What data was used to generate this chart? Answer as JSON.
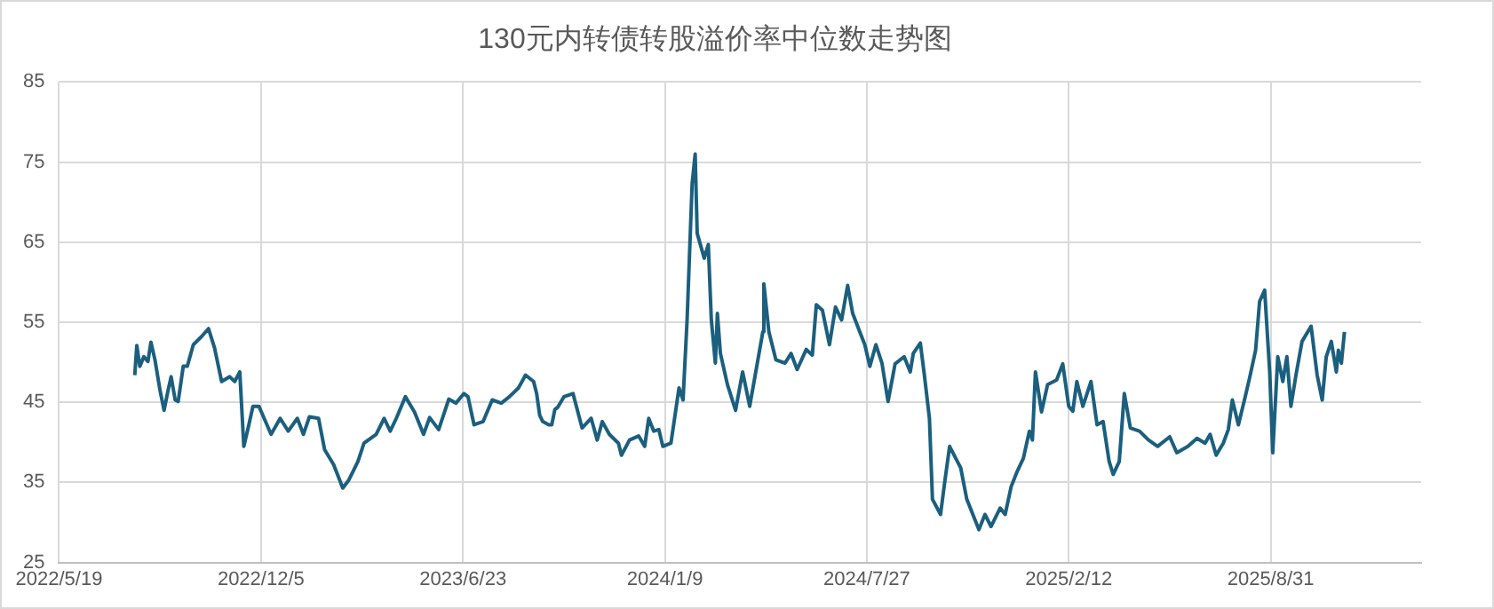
{
  "chart_data": {
    "type": "line",
    "title": "130元内转债转股溢价率中位数走势图",
    "series": [
      {
        "color": "#1b5f7e",
        "x": [
          "2022-08-02",
          "2022-08-04",
          "2022-08-07",
          "2022-08-11",
          "2022-08-15",
          "2022-08-18",
          "2022-08-22",
          "2022-08-27",
          "2022-08-31",
          "2022-09-04",
          "2022-09-07",
          "2022-09-11",
          "2022-09-14",
          "2022-09-19",
          "2022-09-23",
          "2022-09-29",
          "2022-10-07",
          "2022-10-14",
          "2022-10-20",
          "2022-10-27",
          "2022-11-04",
          "2022-11-09",
          "2022-11-14",
          "2022-11-18",
          "2022-11-23",
          "2022-11-27",
          "2022-12-03",
          "2022-12-15",
          "2022-12-24",
          "2023-01-01",
          "2023-01-10",
          "2023-01-16",
          "2023-01-22",
          "2023-01-31",
          "2023-02-06",
          "2023-02-15",
          "2023-02-24",
          "2023-03-02",
          "2023-03-11",
          "2023-03-17",
          "2023-03-29",
          "2023-04-06",
          "2023-04-12",
          "2023-04-18",
          "2023-04-27",
          "2023-05-06",
          "2023-05-15",
          "2023-05-21",
          "2023-05-30",
          "2023-06-09",
          "2023-06-16",
          "2023-06-24",
          "2023-06-28",
          "2023-07-04",
          "2023-07-13",
          "2023-07-22",
          "2023-07-31",
          "2023-08-08",
          "2023-08-17",
          "2023-08-24",
          "2023-09-01",
          "2023-09-04",
          "2023-09-07",
          "2023-09-10",
          "2023-09-16",
          "2023-09-19",
          "2023-09-22",
          "2023-09-25",
          "2023-10-01",
          "2023-10-10",
          "2023-10-19",
          "2023-10-28",
          "2023-11-03",
          "2023-11-08",
          "2023-11-15",
          "2023-11-24",
          "2023-11-27",
          "2023-12-05",
          "2023-12-14",
          "2023-12-20",
          "2023-12-24",
          "2023-12-29",
          "2024-01-03",
          "2024-01-07",
          "2024-01-15",
          "2024-01-23",
          "2024-01-27",
          "2024-01-31",
          "2024-02-05",
          "2024-02-08",
          "2024-02-10",
          "2024-02-17",
          "2024-02-21",
          "2024-02-24",
          "2024-02-28",
          "2024-03-01",
          "2024-03-04",
          "2024-03-11",
          "2024-03-19",
          "2024-03-26",
          "2024-04-02",
          "2024-04-09",
          "2024-04-15",
          "2024-04-16",
          "2024-04-21",
          "2024-04-28",
          "2024-05-07",
          "2024-05-13",
          "2024-05-19",
          "2024-05-28",
          "2024-06-03",
          "2024-06-07",
          "2024-06-13",
          "2024-06-20",
          "2024-06-26",
          "2024-07-02",
          "2024-07-08",
          "2024-07-13",
          "2024-07-20",
          "2024-07-25",
          "2024-07-30",
          "2024-08-05",
          "2024-08-11",
          "2024-08-17",
          "2024-08-24",
          "2024-09-02",
          "2024-09-08",
          "2024-09-11",
          "2024-09-18",
          "2024-09-22",
          "2024-09-27",
          "2024-09-30",
          "2024-10-08",
          "2024-10-12",
          "2024-10-17",
          "2024-10-28",
          "2024-11-03",
          "2024-11-09",
          "2024-11-15",
          "2024-11-21",
          "2024-11-27",
          "2024-12-06",
          "2024-12-11",
          "2024-12-17",
          "2024-12-23",
          "2024-12-29",
          "2025-01-04",
          "2025-01-07",
          "2025-01-10",
          "2025-01-16",
          "2025-01-22",
          "2025-01-31",
          "2025-02-06",
          "2025-02-12",
          "2025-02-16",
          "2025-02-20",
          "2025-02-26",
          "2025-03-06",
          "2025-03-12",
          "2025-03-18",
          "2025-03-24",
          "2025-03-28",
          "2025-04-03",
          "2025-04-08",
          "2025-04-14",
          "2025-04-23",
          "2025-05-02",
          "2025-05-11",
          "2025-05-23",
          "2025-05-30",
          "2025-06-10",
          "2025-06-19",
          "2025-06-27",
          "2025-07-02",
          "2025-07-08",
          "2025-07-15",
          "2025-07-20",
          "2025-07-24",
          "2025-07-30",
          "2025-08-05",
          "2025-08-10",
          "2025-08-16",
          "2025-08-20",
          "2025-08-25",
          "2025-08-30",
          "2025-09-02",
          "2025-09-07",
          "2025-09-12",
          "2025-09-16",
          "2025-09-20",
          "2025-09-25",
          "2025-10-01",
          "2025-10-10",
          "2025-10-16",
          "2025-10-21",
          "2025-10-25",
          "2025-10-30",
          "2025-11-04",
          "2025-11-06",
          "2025-11-09",
          "2025-11-12"
        ],
        "values": [
          48.4,
          52.1,
          49.5,
          50.7,
          50.1,
          52.5,
          50.3,
          46.5,
          44.0,
          46.5,
          48.2,
          45.3,
          45.1,
          49.5,
          49.5,
          52.2,
          53.2,
          54.2,
          51.8,
          47.6,
          48.2,
          47.6,
          48.8,
          39.5,
          42.2,
          44.5,
          44.5,
          41.0,
          43.0,
          41.4,
          43.0,
          41.0,
          43.2,
          43.0,
          39.1,
          37.2,
          34.3,
          35.3,
          37.6,
          39.9,
          41.0,
          43.0,
          41.4,
          43.0,
          45.7,
          43.8,
          41.0,
          43.1,
          41.6,
          45.4,
          44.9,
          46.1,
          45.7,
          42.2,
          42.6,
          45.3,
          44.9,
          45.7,
          46.8,
          48.4,
          47.6,
          46.1,
          43.4,
          42.6,
          42.2,
          42.2,
          44.1,
          44.4,
          45.7,
          46.1,
          41.8,
          43.0,
          40.3,
          42.6,
          41.0,
          39.9,
          38.4,
          40.3,
          40.8,
          39.5,
          43.0,
          41.4,
          41.6,
          39.5,
          39.9,
          46.8,
          45.3,
          55.3,
          72.3,
          76.0,
          66.1,
          63.0,
          64.7,
          55.3,
          49.9,
          56.1,
          51.1,
          47.2,
          44.0,
          48.8,
          44.5,
          49.5,
          53.8,
          59.8,
          53.8,
          50.3,
          49.9,
          51.1,
          49.1,
          51.6,
          50.9,
          57.2,
          56.5,
          52.2,
          56.9,
          55.3,
          59.6,
          56.1,
          53.8,
          52.2,
          49.5,
          52.2,
          49.9,
          45.1,
          49.8,
          50.7,
          48.8,
          51.1,
          52.4,
          48.4,
          43.0,
          32.9,
          31.0,
          34.9,
          39.5,
          36.8,
          32.9,
          31.0,
          29.1,
          31.0,
          29.5,
          31.8,
          31.0,
          34.5,
          36.4,
          38.0,
          41.4,
          40.3,
          48.8,
          43.8,
          47.2,
          47.8,
          49.8,
          44.5,
          43.9,
          47.6,
          44.5,
          47.6,
          42.2,
          42.6,
          37.6,
          36.0,
          37.6,
          46.1,
          41.8,
          41.4,
          40.3,
          39.5,
          40.7,
          38.7,
          39.5,
          40.5,
          39.9,
          41.0,
          38.4,
          39.9,
          41.6,
          45.3,
          42.2,
          45.3,
          48.0,
          51.5,
          57.6,
          59.0,
          48.8,
          38.7,
          50.7,
          47.6,
          50.7,
          44.5,
          48.4,
          52.6,
          54.5,
          48.4,
          45.3,
          50.7,
          52.6,
          48.8,
          51.5,
          49.9,
          53.8
        ]
      }
    ],
    "xlim": [
      "2022-05-19",
      "2026-01-27"
    ],
    "xticks": [
      {
        "value": "2022-05-19",
        "label": "2022/5/19"
      },
      {
        "value": "2022-12-05",
        "label": "2022/12/5"
      },
      {
        "value": "2023-06-23",
        "label": "2023/6/23"
      },
      {
        "value": "2024-01-09",
        "label": "2024/1/9"
      },
      {
        "value": "2024-07-27",
        "label": "2024/7/27"
      },
      {
        "value": "2025-02-12",
        "label": "2025/2/12"
      },
      {
        "value": "2025-08-31",
        "label": "2025/8/31"
      }
    ],
    "ylim": [
      25,
      85
    ],
    "yticks": [
      25,
      35,
      45,
      55,
      65,
      75,
      85
    ],
    "grid": true,
    "marker": "none",
    "line_style": "solid"
  }
}
